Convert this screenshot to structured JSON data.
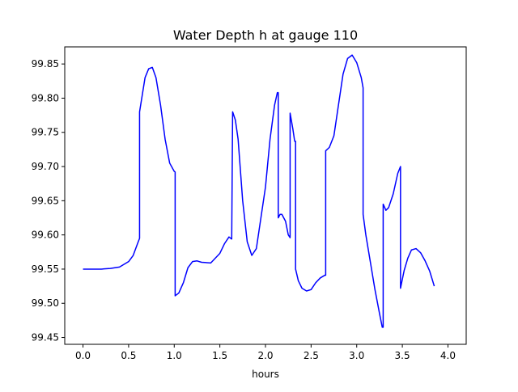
{
  "chart_data": {
    "type": "line",
    "title": "Water Depth h at gauge 110",
    "xlabel": "hours",
    "ylabel": "",
    "xlim": [
      -0.2,
      4.2
    ],
    "ylim": [
      99.44,
      99.875
    ],
    "grid": false,
    "x_ticks": [
      0.0,
      0.5,
      1.0,
      1.5,
      2.0,
      2.5,
      3.0,
      3.5,
      4.0
    ],
    "x_tick_labels": [
      "0.0",
      "0.5",
      "1.0",
      "1.5",
      "2.0",
      "2.5",
      "3.0",
      "3.5",
      "4.0"
    ],
    "y_ticks": [
      99.45,
      99.5,
      99.55,
      99.6,
      99.65,
      99.7,
      99.75,
      99.8,
      99.85
    ],
    "y_tick_labels": [
      "99.45",
      "99.50",
      "99.55",
      "99.60",
      "99.65",
      "99.70",
      "99.75",
      "99.80",
      "99.85"
    ],
    "colors": {
      "line": "#0000ff",
      "axes": "#000000",
      "background": "#ffffff"
    },
    "series": [
      {
        "points": [
          [
            0.0,
            99.55
          ],
          [
            0.1,
            99.55
          ],
          [
            0.2,
            99.55
          ],
          [
            0.3,
            99.551
          ],
          [
            0.4,
            99.553
          ],
          [
            0.5,
            99.561
          ],
          [
            0.55,
            99.57
          ],
          [
            0.6,
            99.588
          ],
          [
            0.62,
            99.595
          ],
          [
            0.62,
            99.78
          ],
          [
            0.65,
            99.805
          ],
          [
            0.68,
            99.83
          ],
          [
            0.72,
            99.843
          ],
          [
            0.76,
            99.845
          ],
          [
            0.8,
            99.83
          ],
          [
            0.85,
            99.79
          ],
          [
            0.9,
            99.74
          ],
          [
            0.95,
            99.705
          ],
          [
            1.0,
            99.693
          ],
          [
            1.01,
            99.692
          ],
          [
            1.01,
            99.511
          ],
          [
            1.05,
            99.515
          ],
          [
            1.1,
            99.53
          ],
          [
            1.15,
            99.552
          ],
          [
            1.2,
            99.561
          ],
          [
            1.25,
            99.562
          ],
          [
            1.3,
            99.56
          ],
          [
            1.4,
            99.559
          ],
          [
            1.5,
            99.573
          ],
          [
            1.55,
            99.587
          ],
          [
            1.6,
            99.597
          ],
          [
            1.63,
            99.594
          ],
          [
            1.64,
            99.78
          ],
          [
            1.67,
            99.768
          ],
          [
            1.7,
            99.74
          ],
          [
            1.75,
            99.65
          ],
          [
            1.8,
            99.59
          ],
          [
            1.85,
            99.57
          ],
          [
            1.9,
            99.58
          ],
          [
            2.0,
            99.67
          ],
          [
            2.05,
            99.74
          ],
          [
            2.1,
            99.79
          ],
          [
            2.13,
            99.808
          ],
          [
            2.14,
            99.808
          ],
          [
            2.14,
            99.625
          ],
          [
            2.16,
            99.63
          ],
          [
            2.18,
            99.63
          ],
          [
            2.22,
            99.62
          ],
          [
            2.25,
            99.6
          ],
          [
            2.27,
            99.596
          ],
          [
            2.27,
            99.778
          ],
          [
            2.3,
            99.755
          ],
          [
            2.32,
            99.737
          ],
          [
            2.33,
            99.737
          ],
          [
            2.33,
            99.55
          ],
          [
            2.36,
            99.533
          ],
          [
            2.4,
            99.522
          ],
          [
            2.45,
            99.518
          ],
          [
            2.5,
            99.52
          ],
          [
            2.55,
            99.53
          ],
          [
            2.6,
            99.537
          ],
          [
            2.65,
            99.541
          ],
          [
            2.66,
            99.541
          ],
          [
            2.66,
            99.723
          ],
          [
            2.7,
            99.728
          ],
          [
            2.75,
            99.745
          ],
          [
            2.8,
            99.79
          ],
          [
            2.85,
            99.835
          ],
          [
            2.9,
            99.858
          ],
          [
            2.95,
            99.863
          ],
          [
            3.0,
            99.852
          ],
          [
            3.05,
            99.83
          ],
          [
            3.07,
            99.815
          ],
          [
            3.07,
            99.63
          ],
          [
            3.1,
            99.6
          ],
          [
            3.15,
            99.56
          ],
          [
            3.2,
            99.52
          ],
          [
            3.25,
            99.485
          ],
          [
            3.28,
            99.465
          ],
          [
            3.29,
            99.465
          ],
          [
            3.29,
            99.645
          ],
          [
            3.32,
            99.636
          ],
          [
            3.35,
            99.64
          ],
          [
            3.4,
            99.66
          ],
          [
            3.45,
            99.69
          ],
          [
            3.48,
            99.7
          ],
          [
            3.48,
            99.522
          ],
          [
            3.52,
            99.548
          ],
          [
            3.56,
            99.566
          ],
          [
            3.6,
            99.578
          ],
          [
            3.65,
            99.58
          ],
          [
            3.7,
            99.574
          ],
          [
            3.75,
            99.562
          ],
          [
            3.8,
            99.547
          ],
          [
            3.85,
            99.525
          ]
        ]
      }
    ]
  }
}
